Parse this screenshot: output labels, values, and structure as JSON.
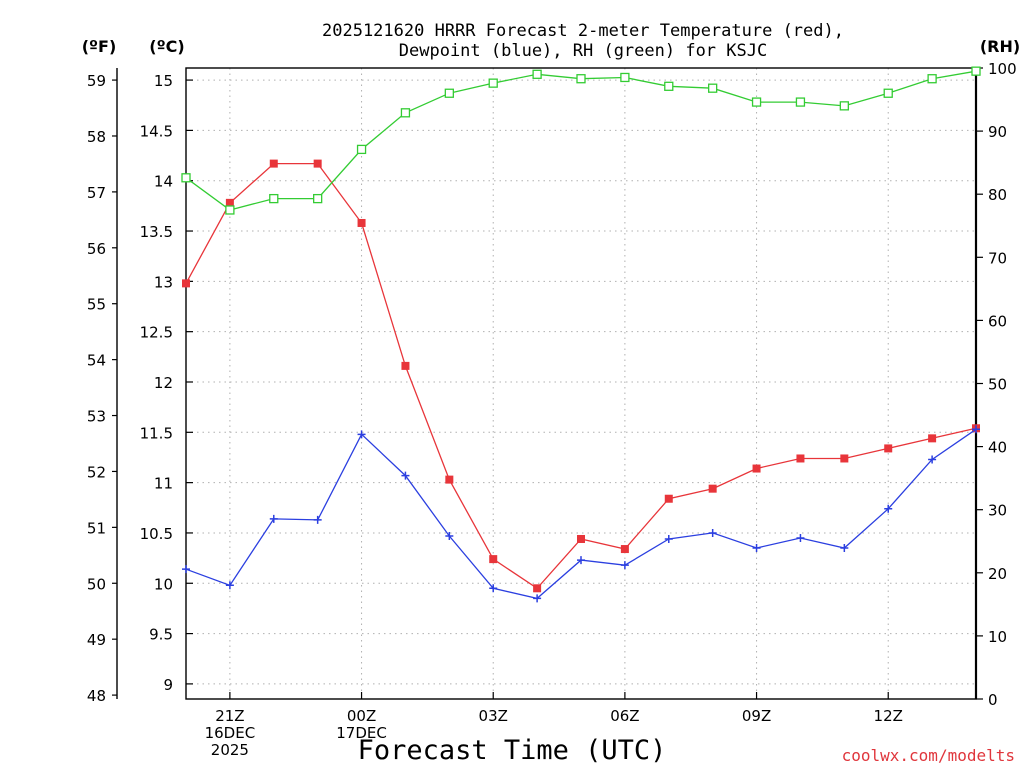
{
  "chart_data": {
    "type": "line",
    "title_line1": "2025121620 HRRR Forecast 2-meter Temperature (red),",
    "title_line2": "Dewpoint (blue), RH (green) for KSJC",
    "left_unit_f": "(ºF)",
    "left_unit_c": "(ºC)",
    "right_unit": "(RH)",
    "xlabel": "Forecast Time (UTC)",
    "credit": "coolwx.com/modelts",
    "x_hours": [
      20,
      21,
      22,
      23,
      24,
      25,
      26,
      27,
      28,
      29,
      30,
      31,
      32,
      33,
      34,
      35,
      36,
      37,
      38
    ],
    "x_ticks": [
      {
        "hour": 21,
        "lines": [
          "21Z",
          "16DEC",
          "2025"
        ]
      },
      {
        "hour": 24,
        "lines": [
          "00Z",
          "17DEC"
        ]
      },
      {
        "hour": 27,
        "lines": [
          "03Z"
        ]
      },
      {
        "hour": 30,
        "lines": [
          "06Z"
        ]
      },
      {
        "hour": 33,
        "lines": [
          "09Z"
        ]
      },
      {
        "hour": 36,
        "lines": [
          "12Z"
        ]
      }
    ],
    "celsius_axis": {
      "min": 8.85,
      "max": 15.12,
      "ticks": [
        "9",
        "9.5",
        "10",
        "10.5",
        "11",
        "11.5",
        "12",
        "12.5",
        "13",
        "13.5",
        "14",
        "14.5",
        "15"
      ]
    },
    "fahrenheit_axis": {
      "ticks": [
        "48",
        "49",
        "50",
        "51",
        "52",
        "53",
        "54",
        "55",
        "56",
        "57",
        "58",
        "59"
      ]
    },
    "rh_axis": {
      "min": 0,
      "max": 100,
      "ticks": [
        "0",
        "10",
        "20",
        "30",
        "40",
        "50",
        "60",
        "70",
        "80",
        "90",
        "100"
      ]
    },
    "series": [
      {
        "name": "Temperature",
        "axis": "celsius",
        "color": "#e8353a",
        "marker": "filled-square",
        "values": [
          12.98,
          13.78,
          14.17,
          14.17,
          13.58,
          12.16,
          11.03,
          10.24,
          9.95,
          10.44,
          10.34,
          10.84,
          10.94,
          11.14,
          11.24,
          11.24,
          11.34,
          11.44,
          11.54
        ]
      },
      {
        "name": "Dewpoint",
        "axis": "celsius",
        "color": "#2b3fe0",
        "marker": "plus",
        "values": [
          10.14,
          9.98,
          10.64,
          10.63,
          11.48,
          11.07,
          10.47,
          9.95,
          9.85,
          10.23,
          10.18,
          10.44,
          10.5,
          10.35,
          10.45,
          10.35,
          10.74,
          11.23,
          11.53
        ]
      },
      {
        "name": "RH",
        "axis": "rh",
        "color": "#33cc33",
        "marker": "open-square",
        "values": [
          82.6,
          77.5,
          79.3,
          79.3,
          87.1,
          92.9,
          96.0,
          97.6,
          99.0,
          98.3,
          98.5,
          97.1,
          96.8,
          94.6,
          94.6,
          94.0,
          96.0,
          98.3,
          99.5
        ]
      }
    ]
  }
}
